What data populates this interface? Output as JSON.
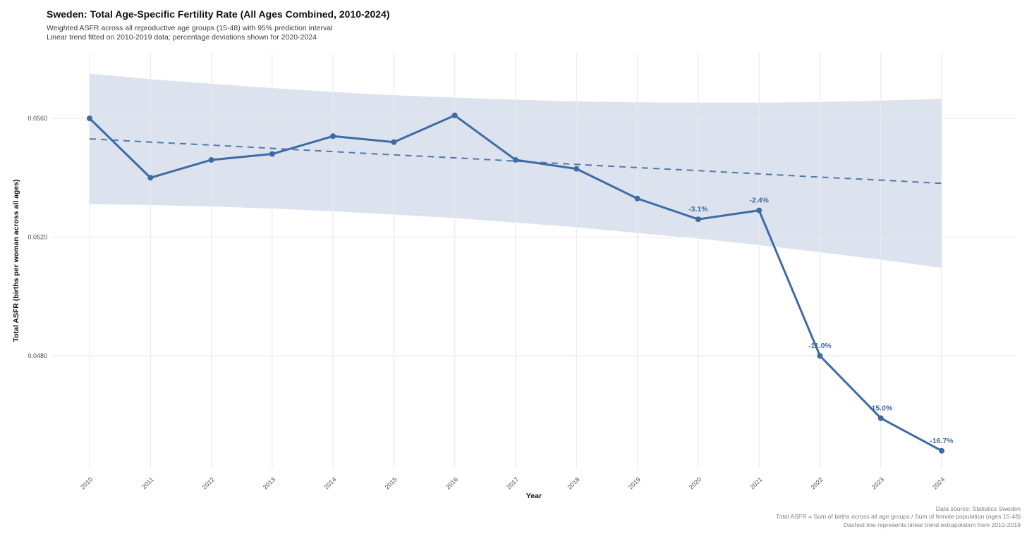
{
  "header": {
    "title": "Sweden: Total Age-Specific Fertility Rate (All Ages Combined, 2010-2024)",
    "subtitle_lines": [
      "Weighted ASFR across all reproductive age groups (15-48) with 95% prediction interval",
      "Linear trend fitted on 2010-2019 data; percentage deviations shown for 2020-2024"
    ]
  },
  "chart_data": {
    "type": "line",
    "title": "Sweden: Total Age-Specific Fertility Rate (All Ages Combined, 2010-2024)",
    "xlabel": "Year",
    "ylabel": "Total ASFR (births per woman across all ages)",
    "x": [
      2010,
      2011,
      2012,
      2013,
      2014,
      2015,
      2016,
      2017,
      2018,
      2019,
      2020,
      2021,
      2022,
      2023,
      2024
    ],
    "series": [
      {
        "name": "Total ASFR (observed)",
        "style": "solid-with-points",
        "values": [
          0.056,
          0.054,
          0.0546,
          0.0548,
          0.0554,
          0.0552,
          0.0561,
          0.0546,
          0.0543,
          0.0533,
          0.0526,
          0.0529,
          0.048,
          0.0459,
          0.0448
        ]
      },
      {
        "name": "Linear trend extrapolation (fitted 2010-2019)",
        "style": "dashed",
        "values": [
          0.05531,
          0.0552,
          0.0551,
          0.05499,
          0.05488,
          0.05477,
          0.05467,
          0.05456,
          0.05445,
          0.05434,
          0.05424,
          0.05413,
          0.05402,
          0.05392,
          0.05381
        ]
      }
    ],
    "band": {
      "name": "95% prediction interval",
      "upper": [
        0.05751,
        0.05732,
        0.05717,
        0.05702,
        0.05689,
        0.05678,
        0.0567,
        0.05663,
        0.05657,
        0.05654,
        0.05653,
        0.05653,
        0.05655,
        0.0566,
        0.05666
      ],
      "lower": [
        0.05311,
        0.05308,
        0.05303,
        0.05296,
        0.05287,
        0.05276,
        0.05264,
        0.05249,
        0.05233,
        0.05214,
        0.05195,
        0.05173,
        0.05149,
        0.05124,
        0.05096
      ]
    },
    "annotations": [
      {
        "x": 2020,
        "label": "-3.1%"
      },
      {
        "x": 2021,
        "label": "-2.4%"
      },
      {
        "x": 2022,
        "label": "-11.0%"
      },
      {
        "x": 2023,
        "label": "-15.0%"
      },
      {
        "x": 2024,
        "label": "-16.7%"
      }
    ],
    "yticks": [
      0.056,
      0.052,
      0.048
    ],
    "ytick_labels": [
      "0.0560",
      "0.0520",
      "0.0480"
    ],
    "xtick_labels": [
      "2010",
      "2011",
      "2012",
      "2013",
      "2014",
      "2015",
      "2016",
      "2017",
      "2018",
      "2019",
      "2020",
      "2021",
      "2022",
      "2023",
      "2024"
    ],
    "ylim": [
      0.0442,
      0.0582
    ],
    "grid": true,
    "legend": "none",
    "colors": {
      "line": "#3e6ba3",
      "trend_dashed": "#4e79ab",
      "band": "#dde3ee",
      "grid": "#e9e9e9",
      "annotation": "#3e6ba3",
      "tick_text": "#4d4d4d"
    }
  },
  "caption": {
    "lines": [
      "Data source: Statistics Sweden",
      "Total ASFR = Sum of births across all age groups / Sum of female population (ages 15-48)",
      "Dashed line represents linear trend extrapolation from 2010-2019"
    ]
  }
}
